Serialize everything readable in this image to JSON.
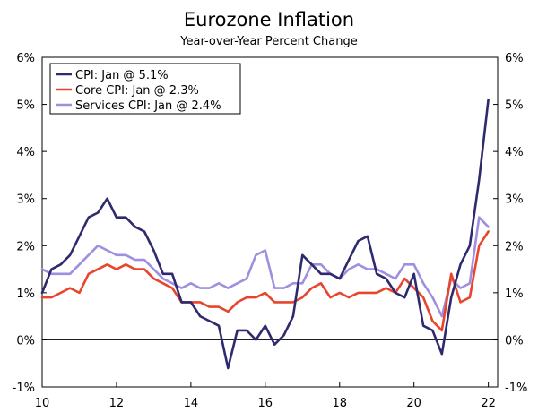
{
  "chart_data": {
    "type": "line",
    "title": "Eurozone Inflation",
    "subtitle": "Year-over-Year Percent Change",
    "xlabel": "",
    "ylabel": "",
    "xlim": [
      2010.0,
      2022.25
    ],
    "ylim": [
      -1,
      6
    ],
    "x_ticks": [
      10,
      12,
      14,
      16,
      18,
      20,
      22
    ],
    "y_ticks": [
      "-1%",
      "0%",
      "1%",
      "2%",
      "3%",
      "4%",
      "5%",
      "6%"
    ],
    "grid": false,
    "legend_position": "top-left",
    "series": [
      {
        "name": "CPI: Jan @ 5.1%",
        "color": "#2e2a6e",
        "points": [
          [
            2010.0,
            1.0
          ],
          [
            2010.25,
            1.5
          ],
          [
            2010.5,
            1.6
          ],
          [
            2010.75,
            1.8
          ],
          [
            2011.0,
            2.2
          ],
          [
            2011.25,
            2.6
          ],
          [
            2011.5,
            2.7
          ],
          [
            2011.75,
            3.0
          ],
          [
            2012.0,
            2.6
          ],
          [
            2012.25,
            2.6
          ],
          [
            2012.5,
            2.4
          ],
          [
            2012.75,
            2.3
          ],
          [
            2013.0,
            1.9
          ],
          [
            2013.25,
            1.4
          ],
          [
            2013.5,
            1.4
          ],
          [
            2013.75,
            0.8
          ],
          [
            2014.0,
            0.8
          ],
          [
            2014.25,
            0.5
          ],
          [
            2014.5,
            0.4
          ],
          [
            2014.75,
            0.3
          ],
          [
            2015.0,
            -0.6
          ],
          [
            2015.25,
            0.2
          ],
          [
            2015.5,
            0.2
          ],
          [
            2015.75,
            0.0
          ],
          [
            2016.0,
            0.3
          ],
          [
            2016.25,
            -0.1
          ],
          [
            2016.5,
            0.1
          ],
          [
            2016.75,
            0.5
          ],
          [
            2017.0,
            1.8
          ],
          [
            2017.25,
            1.6
          ],
          [
            2017.5,
            1.4
          ],
          [
            2017.75,
            1.4
          ],
          [
            2018.0,
            1.3
          ],
          [
            2018.25,
            1.7
          ],
          [
            2018.5,
            2.1
          ],
          [
            2018.75,
            2.2
          ],
          [
            2019.0,
            1.4
          ],
          [
            2019.25,
            1.3
          ],
          [
            2019.5,
            1.0
          ],
          [
            2019.75,
            0.9
          ],
          [
            2020.0,
            1.4
          ],
          [
            2020.25,
            0.3
          ],
          [
            2020.5,
            0.2
          ],
          [
            2020.75,
            -0.3
          ],
          [
            2021.0,
            0.9
          ],
          [
            2021.25,
            1.6
          ],
          [
            2021.5,
            2.0
          ],
          [
            2021.75,
            3.4
          ],
          [
            2022.0,
            5.1
          ]
        ]
      },
      {
        "name": "Core CPI: Jan @ 2.3%",
        "color": "#e8452c",
        "points": [
          [
            2010.0,
            0.9
          ],
          [
            2010.25,
            0.9
          ],
          [
            2010.5,
            1.0
          ],
          [
            2010.75,
            1.1
          ],
          [
            2011.0,
            1.0
          ],
          [
            2011.25,
            1.4
          ],
          [
            2011.5,
            1.5
          ],
          [
            2011.75,
            1.6
          ],
          [
            2012.0,
            1.5
          ],
          [
            2012.25,
            1.6
          ],
          [
            2012.5,
            1.5
          ],
          [
            2012.75,
            1.5
          ],
          [
            2013.0,
            1.3
          ],
          [
            2013.25,
            1.2
          ],
          [
            2013.5,
            1.1
          ],
          [
            2013.75,
            0.8
          ],
          [
            2014.0,
            0.8
          ],
          [
            2014.25,
            0.8
          ],
          [
            2014.5,
            0.7
          ],
          [
            2014.75,
            0.7
          ],
          [
            2015.0,
            0.6
          ],
          [
            2015.25,
            0.8
          ],
          [
            2015.5,
            0.9
          ],
          [
            2015.75,
            0.9
          ],
          [
            2016.0,
            1.0
          ],
          [
            2016.25,
            0.8
          ],
          [
            2016.5,
            0.8
          ],
          [
            2016.75,
            0.8
          ],
          [
            2017.0,
            0.9
          ],
          [
            2017.25,
            1.1
          ],
          [
            2017.5,
            1.2
          ],
          [
            2017.75,
            0.9
          ],
          [
            2018.0,
            1.0
          ],
          [
            2018.25,
            0.9
          ],
          [
            2018.5,
            1.0
          ],
          [
            2018.75,
            1.0
          ],
          [
            2019.0,
            1.0
          ],
          [
            2019.25,
            1.1
          ],
          [
            2019.5,
            1.0
          ],
          [
            2019.75,
            1.3
          ],
          [
            2020.0,
            1.1
          ],
          [
            2020.25,
            0.9
          ],
          [
            2020.5,
            0.4
          ],
          [
            2020.75,
            0.2
          ],
          [
            2021.0,
            1.4
          ],
          [
            2021.25,
            0.8
          ],
          [
            2021.5,
            0.9
          ],
          [
            2021.75,
            2.0
          ],
          [
            2022.0,
            2.3
          ]
        ]
      },
      {
        "name": "Services CPI: Jan @ 2.4%",
        "color": "#a08ee0",
        "points": [
          [
            2010.0,
            1.5
          ],
          [
            2010.25,
            1.4
          ],
          [
            2010.5,
            1.4
          ],
          [
            2010.75,
            1.4
          ],
          [
            2011.0,
            1.6
          ],
          [
            2011.25,
            1.8
          ],
          [
            2011.5,
            2.0
          ],
          [
            2011.75,
            1.9
          ],
          [
            2012.0,
            1.8
          ],
          [
            2012.25,
            1.8
          ],
          [
            2012.5,
            1.7
          ],
          [
            2012.75,
            1.7
          ],
          [
            2013.0,
            1.5
          ],
          [
            2013.25,
            1.3
          ],
          [
            2013.5,
            1.2
          ],
          [
            2013.75,
            1.1
          ],
          [
            2014.0,
            1.2
          ],
          [
            2014.25,
            1.1
          ],
          [
            2014.5,
            1.1
          ],
          [
            2014.75,
            1.2
          ],
          [
            2015.0,
            1.1
          ],
          [
            2015.25,
            1.2
          ],
          [
            2015.5,
            1.3
          ],
          [
            2015.75,
            1.8
          ],
          [
            2016.0,
            1.9
          ],
          [
            2016.25,
            1.1
          ],
          [
            2016.5,
            1.1
          ],
          [
            2016.75,
            1.2
          ],
          [
            2017.0,
            1.2
          ],
          [
            2017.25,
            1.6
          ],
          [
            2017.5,
            1.6
          ],
          [
            2017.75,
            1.4
          ],
          [
            2018.0,
            1.3
          ],
          [
            2018.25,
            1.5
          ],
          [
            2018.5,
            1.6
          ],
          [
            2018.75,
            1.5
          ],
          [
            2019.0,
            1.5
          ],
          [
            2019.25,
            1.4
          ],
          [
            2019.5,
            1.3
          ],
          [
            2019.75,
            1.6
          ],
          [
            2020.0,
            1.6
          ],
          [
            2020.25,
            1.2
          ],
          [
            2020.5,
            0.9
          ],
          [
            2020.75,
            0.5
          ],
          [
            2021.0,
            1.3
          ],
          [
            2021.25,
            1.1
          ],
          [
            2021.5,
            1.2
          ],
          [
            2021.75,
            2.6
          ],
          [
            2022.0,
            2.4
          ]
        ]
      }
    ]
  }
}
